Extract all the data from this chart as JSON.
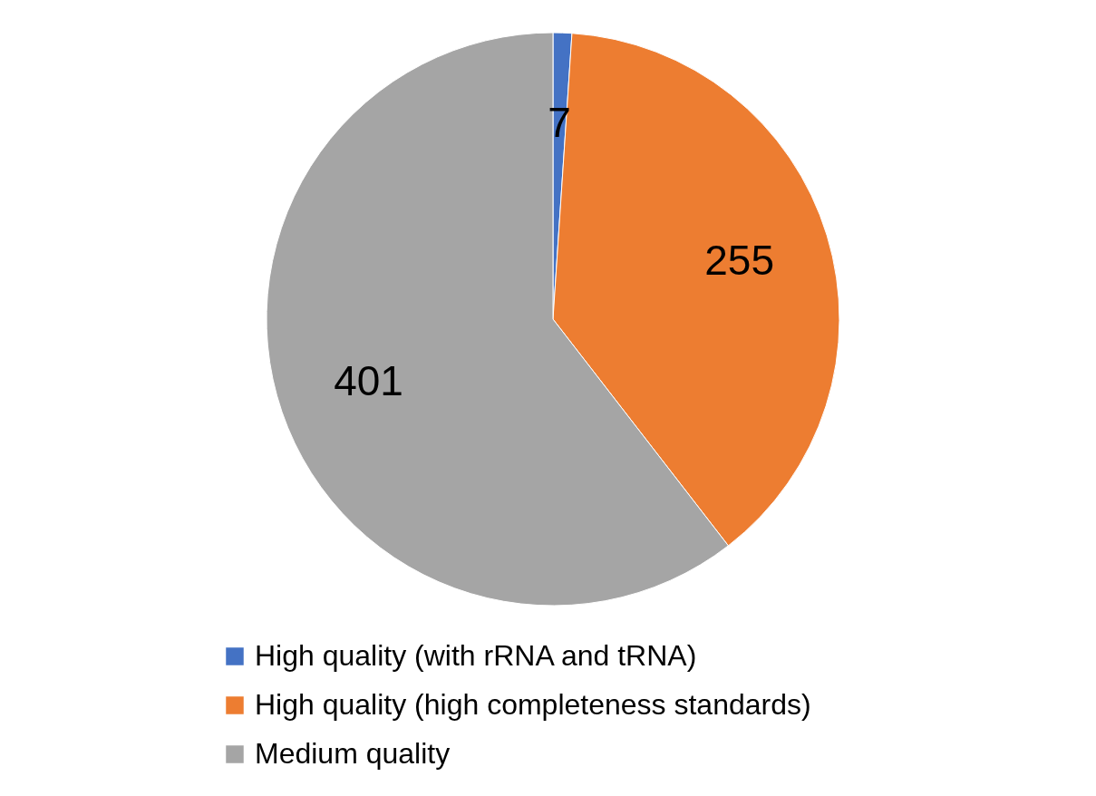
{
  "chart_data": {
    "type": "pie",
    "categories": [
      "High quality (with rRNA and tRNA)",
      "High quality (high completeness standards)",
      "Medium quality"
    ],
    "values": [
      7,
      255,
      401
    ],
    "colors": [
      "#4472c4",
      "#ed7d31",
      "#a5a5a5"
    ],
    "data_labels": true,
    "legend": "bottom"
  }
}
